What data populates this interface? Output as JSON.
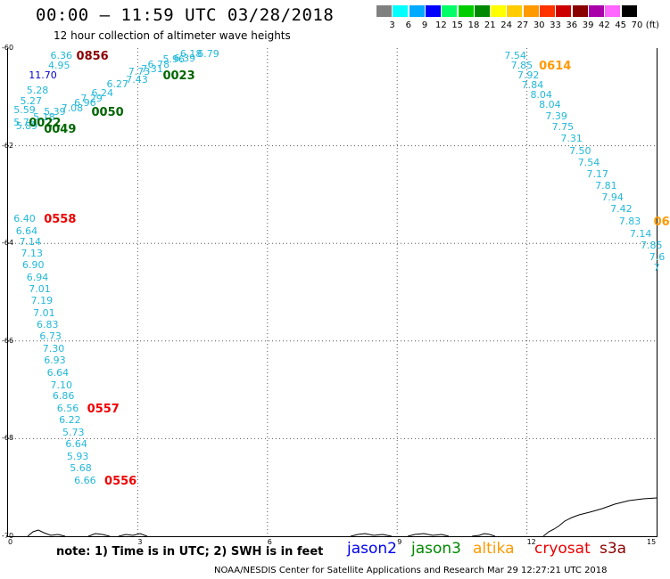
{
  "header": {
    "title": "00:00 – 11:59 UTC 03/28/2018",
    "subtitle": "12 hour collection of altimeter wave heights"
  },
  "colorbar": {
    "labels": [
      "3",
      "6",
      "9",
      "12",
      "15",
      "18",
      "21",
      "24",
      "27",
      "30",
      "33",
      "36",
      "39",
      "42",
      "45",
      "70"
    ],
    "unit": "(ft)",
    "colors": [
      "#808080",
      "#00ffff",
      "#00aaff",
      "#0000ff",
      "#00ff66",
      "#00cc00",
      "#008800",
      "#ffff00",
      "#ffcc00",
      "#ff9900",
      "#ff3300",
      "#cc0000",
      "#880000",
      "#aa00aa",
      "#ff66ff",
      "#000000"
    ]
  },
  "axes": {
    "x_ticks": [
      "0",
      "3",
      "6",
      "9",
      "12",
      "15"
    ],
    "y_ticks": [
      "-60",
      "-62",
      "-64",
      "-66",
      "-68",
      "-70"
    ]
  },
  "tracks": [
    {
      "color": "#22b8d8",
      "obs": [
        {
          "v": "6.36",
          "lon": 1.0,
          "lat": -60.05
        },
        {
          "v": "4.95",
          "lon": 0.95,
          "lat": -60.25
        },
        {
          "v": "5.28",
          "lon": 0.45,
          "lat": -60.77
        },
        {
          "v": "5.27",
          "lon": 0.3,
          "lat": -60.98
        },
        {
          "v": "5.59",
          "lon": 0.15,
          "lat": -61.17
        },
        {
          "v": "5.39",
          "lon": 0.85,
          "lat": -61.2
        },
        {
          "v": "7.08",
          "lon": 1.25,
          "lat": -61.13
        },
        {
          "v": "6.96",
          "lon": 1.55,
          "lat": -61.03
        },
        {
          "v": "5.18",
          "lon": 0.6,
          "lat": -61.32
        },
        {
          "v": "5.76",
          "lon": 0.15,
          "lat": -61.43
        },
        {
          "v": "5.89",
          "lon": 0.2,
          "lat": -61.5
        },
        {
          "v": "7.29",
          "lon": 1.7,
          "lat": -60.93
        },
        {
          "v": "6.24",
          "lon": 1.95,
          "lat": -60.83
        },
        {
          "v": "6.27",
          "lon": 2.3,
          "lat": -60.63
        },
        {
          "v": "7.43",
          "lon": 2.75,
          "lat": -60.55
        },
        {
          "v": "7.73",
          "lon": 2.8,
          "lat": -60.38
        },
        {
          "v": "7.31",
          "lon": 3.1,
          "lat": -60.32
        },
        {
          "v": "6.78",
          "lon": 3.25,
          "lat": -60.23
        },
        {
          "v": "5.96",
          "lon": 3.6,
          "lat": -60.13
        },
        {
          "v": "6.39",
          "lon": 3.85,
          "lat": -60.11
        },
        {
          "v": "6.18",
          "lon": 4.0,
          "lat": -60.02
        },
        {
          "v": "6.79",
          "lon": 4.4,
          "lat": -60.02
        }
      ]
    },
    {
      "color": "#22b8d8",
      "obs": [
        {
          "v": "6.40",
          "lon": 0.15,
          "lat": -63.4
        },
        {
          "v": "6.64",
          "lon": 0.2,
          "lat": -63.65
        },
        {
          "v": "7.14",
          "lon": 0.28,
          "lat": -63.87
        },
        {
          "v": "7.13",
          "lon": 0.32,
          "lat": -64.1
        },
        {
          "v": "6.90",
          "lon": 0.35,
          "lat": -64.35
        },
        {
          "v": "6.94",
          "lon": 0.45,
          "lat": -64.6
        },
        {
          "v": "7.01",
          "lon": 0.5,
          "lat": -64.83
        },
        {
          "v": "7.19",
          "lon": 0.55,
          "lat": -65.07
        },
        {
          "v": "7.01",
          "lon": 0.6,
          "lat": -65.32
        },
        {
          "v": "6.83",
          "lon": 0.68,
          "lat": -65.56
        },
        {
          "v": "6.73",
          "lon": 0.75,
          "lat": -65.8
        },
        {
          "v": "7.30",
          "lon": 0.82,
          "lat": -66.05
        },
        {
          "v": "6.93",
          "lon": 0.85,
          "lat": -66.3
        },
        {
          "v": "6.64",
          "lon": 0.92,
          "lat": -66.55
        },
        {
          "v": "7.10",
          "lon": 1.0,
          "lat": -66.8
        },
        {
          "v": "6.86",
          "lon": 1.05,
          "lat": -67.03
        },
        {
          "v": "6.56",
          "lon": 1.15,
          "lat": -67.28
        },
        {
          "v": "6.22",
          "lon": 1.2,
          "lat": -67.52
        },
        {
          "v": "5.73",
          "lon": 1.28,
          "lat": -67.77
        },
        {
          "v": "6.64",
          "lon": 1.35,
          "lat": -68.01
        },
        {
          "v": "5.93",
          "lon": 1.38,
          "lat": -68.26
        },
        {
          "v": "5.68",
          "lon": 1.45,
          "lat": -68.5
        },
        {
          "v": "6.66",
          "lon": 1.55,
          "lat": -68.75
        }
      ]
    },
    {
      "color": "#22b8d8",
      "obs": [
        {
          "v": "7.54",
          "lon": 11.5,
          "lat": -60.05
        },
        {
          "v": "7.85",
          "lon": 11.65,
          "lat": -60.25
        },
        {
          "v": "7.92",
          "lon": 11.8,
          "lat": -60.45
        },
        {
          "v": "7.84",
          "lon": 11.9,
          "lat": -60.65
        },
        {
          "v": "8.04",
          "lon": 12.1,
          "lat": -60.85
        },
        {
          "v": "8.04",
          "lon": 12.3,
          "lat": -61.06
        },
        {
          "v": "7.39",
          "lon": 12.45,
          "lat": -61.3
        },
        {
          "v": "7.75",
          "lon": 12.6,
          "lat": -61.52
        },
        {
          "v": "7.31",
          "lon": 12.8,
          "lat": -61.76
        },
        {
          "v": "7.50",
          "lon": 13.0,
          "lat": -62.0
        },
        {
          "v": "7.54",
          "lon": 13.2,
          "lat": -62.25
        },
        {
          "v": "7.17",
          "lon": 13.4,
          "lat": -62.48
        },
        {
          "v": "7.81",
          "lon": 13.6,
          "lat": -62.72
        },
        {
          "v": "7.94",
          "lon": 13.75,
          "lat": -62.96
        },
        {
          "v": "7.42",
          "lon": 13.95,
          "lat": -63.2
        },
        {
          "v": "7.83",
          "lon": 14.15,
          "lat": -63.45
        },
        {
          "v": "7.14",
          "lon": 14.4,
          "lat": -63.7
        },
        {
          "v": "7.85",
          "lon": 14.65,
          "lat": -63.94
        },
        {
          "v": "7.6",
          "lon": 14.85,
          "lat": -64.18
        },
        {
          "v": "7",
          "lon": 14.95,
          "lat": -64.4
        }
      ]
    },
    {
      "color": "#0000cc",
      "obs": [
        {
          "v": "11.70",
          "lon": 0.5,
          "lat": -60.45
        }
      ]
    }
  ],
  "time_labels": [
    {
      "t": "0856",
      "lon": 1.6,
      "lat": -60.05,
      "color": "#8b0000"
    },
    {
      "t": "0023",
      "lon": 3.6,
      "lat": -60.45,
      "color": "#006600"
    },
    {
      "t": "0050",
      "lon": 1.95,
      "lat": -61.2,
      "color": "#006600"
    },
    {
      "t": "0022",
      "lon": 0.5,
      "lat": -61.42,
      "color": "#006600"
    },
    {
      "t": "0049",
      "lon": 0.85,
      "lat": -61.55,
      "color": "#006600"
    },
    {
      "t": "0558",
      "lon": 0.85,
      "lat": -63.4,
      "color": "#ee0000"
    },
    {
      "t": "0557",
      "lon": 1.85,
      "lat": -67.28,
      "color": "#ee0000"
    },
    {
      "t": "0556",
      "lon": 2.25,
      "lat": -68.75,
      "color": "#ee0000"
    },
    {
      "t": "0614",
      "lon": 12.3,
      "lat": -60.25,
      "color": "#ff9900"
    },
    {
      "t": "06",
      "lon": 14.95,
      "lat": -63.45,
      "color": "#ff9900"
    }
  ],
  "footer": {
    "note": "note: 1) Time is in UTC; 2) SWH is in feet",
    "credit": "NOAA/NESDIS Center for Satellite Applications and Research    Mar 29 12:27:21 UTC 2018"
  },
  "legend": [
    {
      "name": "jason2",
      "color": "#0000ee"
    },
    {
      "name": "jason3",
      "color": "#008800"
    },
    {
      "name": "altika",
      "color": "#ff9900"
    },
    {
      "name": "cryosat",
      "color": "#ee0000"
    },
    {
      "name": "s3a",
      "color": "#8b0000"
    }
  ]
}
